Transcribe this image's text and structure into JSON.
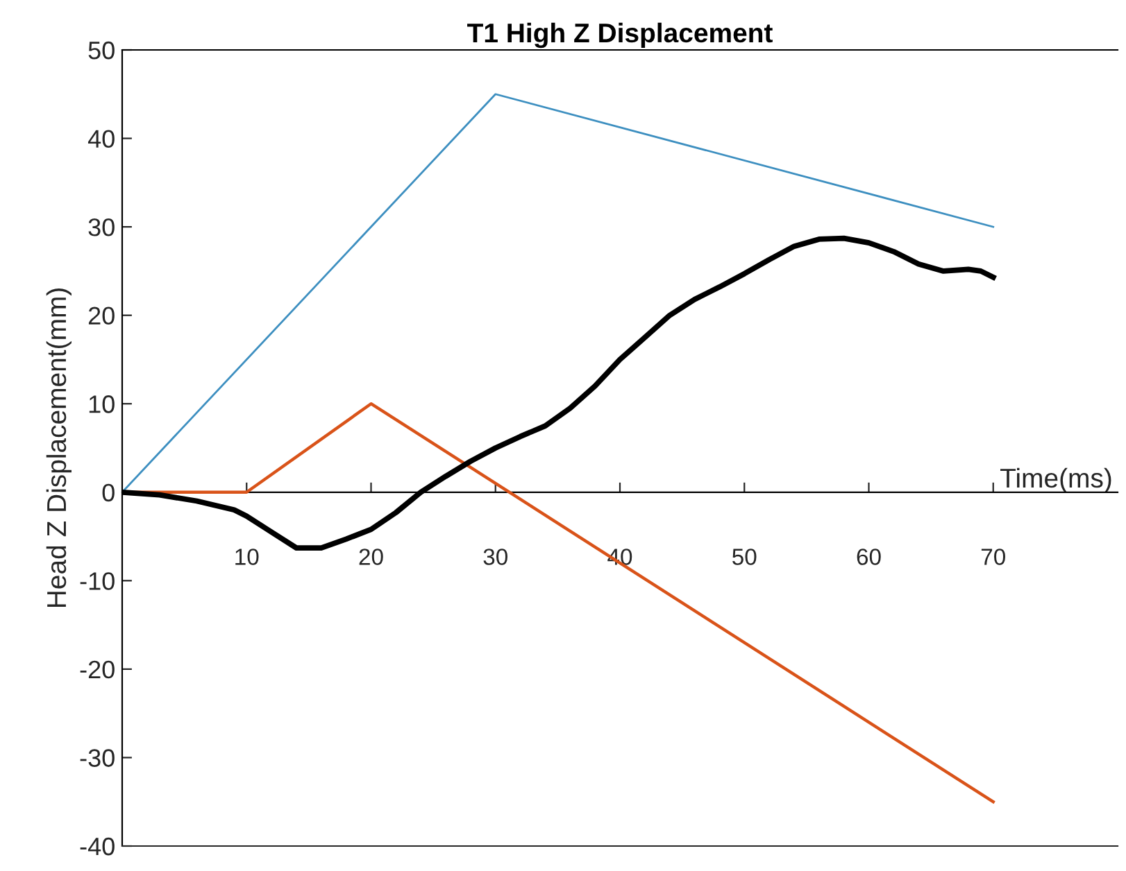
{
  "chart_data": {
    "type": "line",
    "title": "T1 High Z Displacement",
    "xlabel": "Time(ms)",
    "ylabel": "Head Z Displacement(mm)",
    "xlim": [
      0,
      80
    ],
    "xticks": [
      10,
      20,
      30,
      40,
      50,
      60,
      70
    ],
    "ylim": [
      -40,
      50
    ],
    "yticks": [
      -40,
      -30,
      -20,
      -10,
      0,
      10,
      20,
      30,
      40,
      50
    ],
    "grid": false,
    "legend": false,
    "marker": "none",
    "line_style": "solid",
    "series": [
      {
        "color": "#3d8fc0",
        "x": [
          0,
          30,
          70
        ],
        "values": [
          0,
          45,
          30
        ]
      },
      {
        "color": "#d95319",
        "x": [
          0,
          10,
          20,
          70
        ],
        "values": [
          0,
          0,
          10,
          -35
        ]
      },
      {
        "color": "#000000",
        "x": [
          0,
          3,
          6,
          9,
          10,
          12,
          14,
          16,
          18,
          20,
          22,
          24,
          26,
          28,
          30,
          32,
          34,
          36,
          38,
          40,
          42,
          44,
          46,
          48,
          50,
          52,
          54,
          56,
          58,
          60,
          62,
          64,
          66,
          68,
          69,
          70
        ],
        "values": [
          0,
          -0.3,
          -1,
          -2,
          -2.7,
          -4.5,
          -6.3,
          -6.3,
          -5.3,
          -4.2,
          -2.3,
          0,
          1.8,
          3.5,
          5,
          6.3,
          7.5,
          9.5,
          12,
          15,
          17.5,
          20,
          21.8,
          23.2,
          24.7,
          26.3,
          27.8,
          28.6,
          28.7,
          28.2,
          27.2,
          25.8,
          25,
          25.2,
          25,
          24.3
        ]
      }
    ]
  }
}
